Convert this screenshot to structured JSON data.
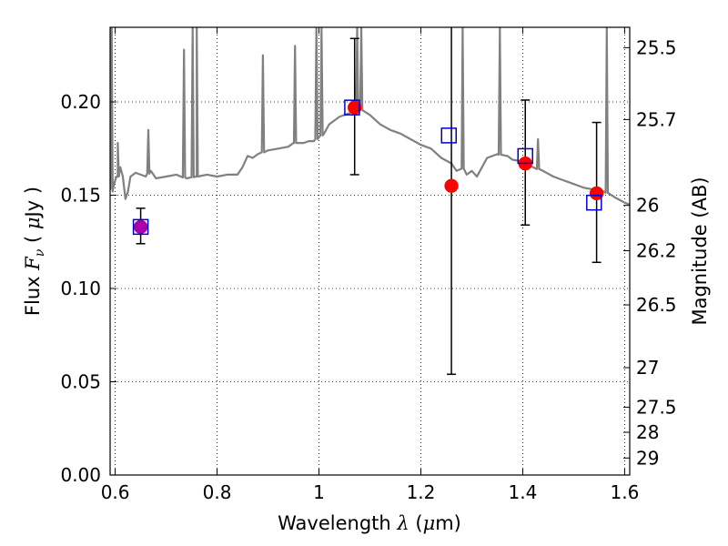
{
  "chart_data": {
    "type": "scatter",
    "xlabel": "Wavelength  λ (μm)",
    "ylabel": "Flux  F_ν  ( μJy )",
    "y2label": "Magnitude (AB)",
    "xlim": [
      0.59,
      1.61
    ],
    "ylim": [
      0.0,
      0.24
    ],
    "grid": true,
    "x_ticks": [
      {
        "value": 0.6,
        "label": "0.6"
      },
      {
        "value": 0.8,
        "label": "0.8"
      },
      {
        "value": 1.0,
        "label": "1"
      },
      {
        "value": 1.2,
        "label": "1.2"
      },
      {
        "value": 1.4,
        "label": "1.4"
      },
      {
        "value": 1.6,
        "label": "1.6"
      }
    ],
    "y_ticks": [
      {
        "value": 0.0,
        "label": "0.00"
      },
      {
        "value": 0.05,
        "label": "0.05"
      },
      {
        "value": 0.1,
        "label": "0.10"
      },
      {
        "value": 0.15,
        "label": "0.15"
      },
      {
        "value": 0.2,
        "label": "0.20"
      }
    ],
    "y2_ticks": [
      {
        "value": 25.5,
        "label": "25.5"
      },
      {
        "value": 25.7,
        "label": "25.7"
      },
      {
        "value": 26.0,
        "label": "26"
      },
      {
        "value": 26.2,
        "label": "26.2"
      },
      {
        "value": 26.5,
        "label": "26.5"
      },
      {
        "value": 27.0,
        "label": "27"
      },
      {
        "value": 27.5,
        "label": "27.5"
      },
      {
        "value": 28.0,
        "label": "28"
      },
      {
        "value": 29.0,
        "label": "29"
      }
    ],
    "model_spectrum": {
      "color": "#808080",
      "continuum": [
        [
          0.59,
          0.155
        ],
        [
          0.595,
          0.152
        ],
        [
          0.6,
          0.158
        ],
        [
          0.605,
          0.16
        ],
        [
          0.61,
          0.165
        ],
        [
          0.615,
          0.16
        ],
        [
          0.62,
          0.148
        ],
        [
          0.625,
          0.152
        ],
        [
          0.63,
          0.16
        ],
        [
          0.64,
          0.162
        ],
        [
          0.65,
          0.161
        ],
        [
          0.66,
          0.16
        ],
        [
          0.67,
          0.163
        ],
        [
          0.68,
          0.159
        ],
        [
          0.7,
          0.16
        ],
        [
          0.72,
          0.161
        ],
        [
          0.74,
          0.159
        ],
        [
          0.76,
          0.16
        ],
        [
          0.78,
          0.161
        ],
        [
          0.8,
          0.16
        ],
        [
          0.82,
          0.161
        ],
        [
          0.84,
          0.161
        ],
        [
          0.85,
          0.165
        ],
        [
          0.86,
          0.171
        ],
        [
          0.87,
          0.17
        ],
        [
          0.88,
          0.172
        ],
        [
          0.9,
          0.174
        ],
        [
          0.92,
          0.175
        ],
        [
          0.94,
          0.176
        ],
        [
          0.95,
          0.178
        ],
        [
          0.97,
          0.178
        ],
        [
          0.98,
          0.179
        ],
        [
          0.99,
          0.179
        ],
        [
          1.0,
          0.181
        ],
        [
          1.01,
          0.183
        ],
        [
          1.02,
          0.188
        ],
        [
          1.04,
          0.192
        ],
        [
          1.06,
          0.194
        ],
        [
          1.08,
          0.196
        ],
        [
          1.1,
          0.193
        ],
        [
          1.12,
          0.188
        ],
        [
          1.14,
          0.185
        ],
        [
          1.16,
          0.183
        ],
        [
          1.18,
          0.18
        ],
        [
          1.2,
          0.177
        ],
        [
          1.22,
          0.175
        ],
        [
          1.24,
          0.17
        ],
        [
          1.26,
          0.167
        ],
        [
          1.27,
          0.163
        ],
        [
          1.28,
          0.165
        ],
        [
          1.29,
          0.161
        ],
        [
          1.3,
          0.163
        ],
        [
          1.31,
          0.16
        ],
        [
          1.32,
          0.165
        ],
        [
          1.33,
          0.17
        ],
        [
          1.35,
          0.172
        ],
        [
          1.37,
          0.171
        ],
        [
          1.38,
          0.169
        ],
        [
          1.4,
          0.168
        ],
        [
          1.42,
          0.165
        ],
        [
          1.44,
          0.163
        ],
        [
          1.46,
          0.16
        ],
        [
          1.48,
          0.158
        ],
        [
          1.5,
          0.156
        ],
        [
          1.52,
          0.154
        ],
        [
          1.54,
          0.153
        ],
        [
          1.56,
          0.152
        ],
        [
          1.58,
          0.149
        ],
        [
          1.6,
          0.146
        ],
        [
          1.61,
          0.145
        ]
      ],
      "emission_lines": [
        {
          "x": 0.593,
          "peak": 0.24
        },
        {
          "x": 0.605,
          "peak": 0.178
        },
        {
          "x": 0.665,
          "peak": 0.185
        },
        {
          "x": 0.735,
          "peak": 0.228
        },
        {
          "x": 0.752,
          "peak": 0.24
        },
        {
          "x": 0.76,
          "peak": 0.24
        },
        {
          "x": 0.89,
          "peak": 0.225
        },
        {
          "x": 0.953,
          "peak": 0.23
        },
        {
          "x": 0.995,
          "peak": 0.24
        },
        {
          "x": 1.005,
          "peak": 0.24
        },
        {
          "x": 1.075,
          "peak": 0.24
        },
        {
          "x": 1.083,
          "peak": 0.24
        },
        {
          "x": 1.282,
          "peak": 0.24
        },
        {
          "x": 1.355,
          "peak": 0.24
        },
        {
          "x": 1.43,
          "peak": 0.18
        },
        {
          "x": 1.565,
          "peak": 0.24
        }
      ]
    },
    "series": [
      {
        "marker": "circle",
        "color": "#ff0000",
        "points": [
          {
            "x": 1.07,
            "y": 0.197,
            "yerr_low": 0.161,
            "yerr_high": 0.234
          },
          {
            "x": 1.26,
            "y": 0.155,
            "yerr_low": 0.054,
            "yerr_high": 0.245
          },
          {
            "x": 1.405,
            "y": 0.167,
            "yerr_low": 0.134,
            "yerr_high": 0.201
          },
          {
            "x": 1.545,
            "y": 0.151,
            "yerr_low": 0.114,
            "yerr_high": 0.189
          }
        ]
      },
      {
        "marker": "circle",
        "color": "#aa00aa",
        "points": [
          {
            "x": 0.65,
            "y": 0.133,
            "yerr_low": 0.124,
            "yerr_high": 0.143
          }
        ]
      },
      {
        "marker": "square",
        "color": "#0000cc",
        "points": [
          {
            "x": 0.65,
            "y": 0.133
          },
          {
            "x": 1.065,
            "y": 0.197
          },
          {
            "x": 1.255,
            "y": 0.182
          },
          {
            "x": 1.405,
            "y": 0.171
          },
          {
            "x": 1.54,
            "y": 0.146
          }
        ]
      }
    ]
  }
}
